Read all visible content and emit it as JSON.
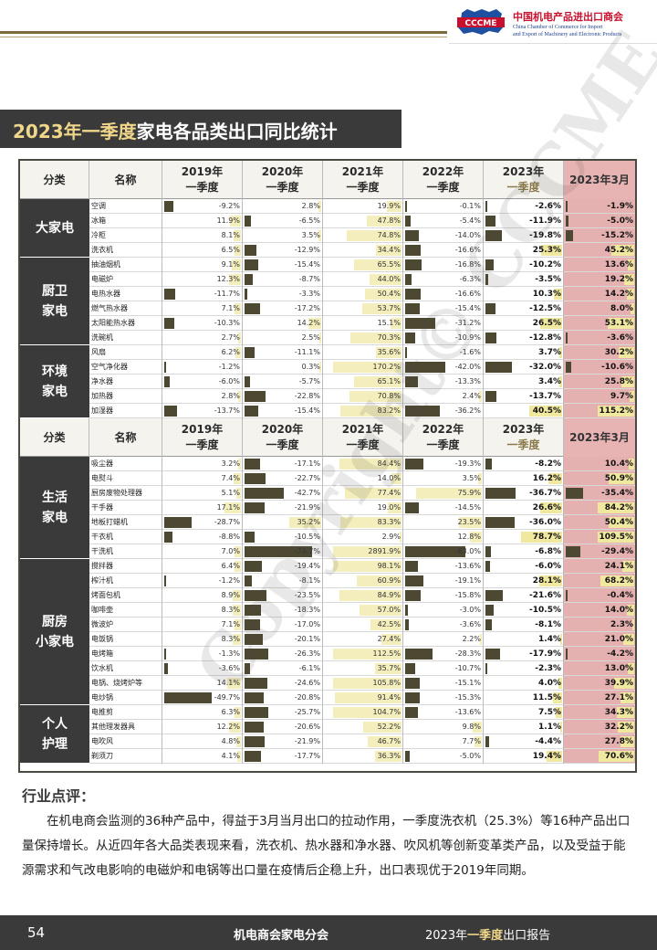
{
  "header": {
    "org_cn": "中国机电产品进出口商会",
    "org_en_1": "China Chamber of Commerce for Import",
    "org_en_2": "and Export of Machinery and Electronic Products",
    "logo_text": "CCCME"
  },
  "title": {
    "part1": "2023年一季度",
    "part2": "家电各品类出口同比统计"
  },
  "table": {
    "headers": {
      "cat": "分类",
      "name": "名称",
      "y2019": "2019年",
      "y2020": "2020年",
      "y2021": "2021年",
      "y2022": "2022年",
      "y2023": "2023年",
      "q1": "一季度",
      "mar2023": "2023年3月"
    },
    "sections": [
      {
        "groups": [
          {
            "label": "大家电",
            "rows": [
              {
                "name": "空调",
                "v": [
                  -9.2,
                  2.8,
                  19.9,
                  -0.1,
                  -2.6,
                  -1.9
                ]
              },
              {
                "name": "冰箱",
                "v": [
                  11.9,
                  -6.5,
                  47.8,
                  -5.4,
                  -11.9,
                  -5.0
                ]
              },
              {
                "name": "冷柜",
                "v": [
                  8.1,
                  3.5,
                  74.8,
                  -14.0,
                  -19.8,
                  -15.2
                ]
              },
              {
                "name": "洗衣机",
                "v": [
                  6.5,
                  -12.9,
                  34.4,
                  -16.6,
                  25.3,
                  45.2
                ]
              }
            ]
          },
          {
            "label": "厨卫\n家电",
            "rows": [
              {
                "name": "抽油烟机",
                "v": [
                  9.1,
                  -15.4,
                  65.5,
                  -16.8,
                  -10.2,
                  13.6
                ]
              },
              {
                "name": "电磁炉",
                "v": [
                  12.3,
                  -8.7,
                  44.0,
                  -6.3,
                  -3.5,
                  19.2
                ]
              },
              {
                "name": "电热水器",
                "v": [
                  -11.7,
                  -3.3,
                  50.4,
                  -16.6,
                  10.3,
                  14.2
                ]
              },
              {
                "name": "燃气热水器",
                "v": [
                  7.1,
                  -17.2,
                  53.7,
                  -15.4,
                  -12.5,
                  8.0
                ]
              },
              {
                "name": "太阳能热水器",
                "v": [
                  -10.3,
                  14.2,
                  15.1,
                  -31.2,
                  26.5,
                  53.1
                ]
              },
              {
                "name": "洗碗机",
                "v": [
                  2.7,
                  2.5,
                  70.3,
                  -10.9,
                  -12.8,
                  -3.6
                ]
              }
            ]
          },
          {
            "label": "环境\n家电",
            "rows": [
              {
                "name": "风扇",
                "v": [
                  6.2,
                  -11.1,
                  35.6,
                  -1.6,
                  3.7,
                  30.2
                ]
              },
              {
                "name": "空气净化器",
                "v": [
                  -1.2,
                  0.3,
                  170.2,
                  -42.0,
                  -32.0,
                  -10.6
                ]
              },
              {
                "name": "净水器",
                "v": [
                  -6.0,
                  -5.7,
                  65.1,
                  -13.3,
                  3.4,
                  25.8
                ]
              },
              {
                "name": "加热器",
                "v": [
                  2.8,
                  -22.8,
                  70.8,
                  2.4,
                  -13.7,
                  9.7
                ]
              },
              {
                "name": "加湿器",
                "v": [
                  -13.7,
                  -15.4,
                  83.2,
                  -36.2,
                  40.5,
                  115.2
                ]
              }
            ]
          }
        ]
      },
      {
        "groups": [
          {
            "label": "生活\n家电",
            "rows": [
              {
                "name": "吸尘器",
                "v": [
                  3.2,
                  -17.1,
                  84.4,
                  -19.3,
                  -8.2,
                  10.4
                ]
              },
              {
                "name": "电熨斗",
                "v": [
                  7.4,
                  -22.7,
                  14.0,
                  3.5,
                  16.2,
                  50.9
                ]
              },
              {
                "name": "厨房废物处理器",
                "v": [
                  5.1,
                  -42.7,
                  77.4,
                  75.9,
                  -36.7,
                  -35.4
                ]
              },
              {
                "name": "干手器",
                "v": [
                  17.1,
                  -21.9,
                  19.0,
                  -14.5,
                  26.6,
                  84.2
                ]
              },
              {
                "name": "地板打蜡机",
                "v": [
                  -28.7,
                  35.2,
                  83.3,
                  23.5,
                  -36.0,
                  50.4
                ]
              },
              {
                "name": "干衣机",
                "v": [
                  -8.8,
                  -10.5,
                  2.9,
                  12.8,
                  78.7,
                  109.5
                ]
              },
              {
                "name": "干洗机",
                "v": [
                  7.0,
                  -74.7,
                  2891.9,
                  -63.0,
                  -6.8,
                  -29.4
                ]
              }
            ]
          },
          {
            "label": "厨房\n小家电",
            "rows": [
              {
                "name": "搅拌器",
                "v": [
                  6.4,
                  -19.4,
                  98.1,
                  -13.6,
                  -6.0,
                  24.1
                ]
              },
              {
                "name": "榨汁机",
                "v": [
                  -1.2,
                  -8.1,
                  60.9,
                  -19.1,
                  28.1,
                  68.2
                ]
              },
              {
                "name": "烤面包机",
                "v": [
                  8.9,
                  -23.5,
                  84.9,
                  -15.8,
                  -21.6,
                  -0.4
                ]
              },
              {
                "name": "咖啡壶",
                "v": [
                  8.3,
                  -18.3,
                  57.0,
                  -3.0,
                  -10.5,
                  14.0
                ]
              },
              {
                "name": "微波炉",
                "v": [
                  7.1,
                  -17.0,
                  42.5,
                  -3.6,
                  -8.1,
                  2.3
                ]
              },
              {
                "name": "电饭锅",
                "v": [
                  8.3,
                  -20.1,
                  27.4,
                  2.2,
                  1.4,
                  21.0
                ]
              },
              {
                "name": "电烤箱",
                "v": [
                  -1.3,
                  -26.3,
                  112.5,
                  -28.3,
                  -17.9,
                  -4.2
                ]
              },
              {
                "name": "饮水机",
                "v": [
                  -3.6,
                  -6.1,
                  35.7,
                  -10.7,
                  -2.3,
                  13.0
                ]
              },
              {
                "name": "电锅、烧烤炉等",
                "v": [
                  14.1,
                  -24.6,
                  105.8,
                  -15.1,
                  4.0,
                  39.9
                ]
              },
              {
                "name": "电炒锅",
                "v": [
                  -49.7,
                  -20.8,
                  91.4,
                  -15.3,
                  11.5,
                  27.1
                ]
              }
            ]
          },
          {
            "label": "个人\n护理",
            "rows": [
              {
                "name": "电推剪",
                "v": [
                  6.3,
                  -25.7,
                  104.7,
                  -13.6,
                  7.5,
                  34.3
                ]
              },
              {
                "name": "其他理发器具",
                "v": [
                  12.2,
                  -20.6,
                  52.2,
                  9.8,
                  1.1,
                  32.2
                ]
              },
              {
                "name": "电吹风",
                "v": [
                  4.8,
                  -21.9,
                  46.7,
                  7.7,
                  -4.4,
                  27.8
                ]
              },
              {
                "name": "剃须刀",
                "v": [
                  4.1,
                  -17.7,
                  36.3,
                  -5.0,
                  19.4,
                  70.6
                ]
              }
            ]
          }
        ]
      }
    ]
  },
  "comment": {
    "title": "行业点评：",
    "body": "在机电商会监测的36种产品中，得益于3月当月出口的拉动作用，一季度洗衣机（25.3%）等16种产品出口量保持增长。从近四年各大品类表现来看，洗衣机、热水器和净水器、吹风机等创新变革类产品，以及受益于能源需求和气改电影响的电磁炉和电锅等出口量在疫情后企稳上升，出口表现优于2019年同期。"
  },
  "footer": {
    "page_number": "54",
    "center": "机电商会家电分会",
    "right_pre": "2023年",
    "right_hl": "一季度",
    "right_post": "出口报告"
  },
  "watermark": "Copyright© CCCME",
  "colors": {
    "dark": "#3a3a3a",
    "gold": "#f0d68a",
    "march_col": "#e5b0b0",
    "bar_pos": "#f3eebb",
    "bar_neg": "#4d4832"
  }
}
